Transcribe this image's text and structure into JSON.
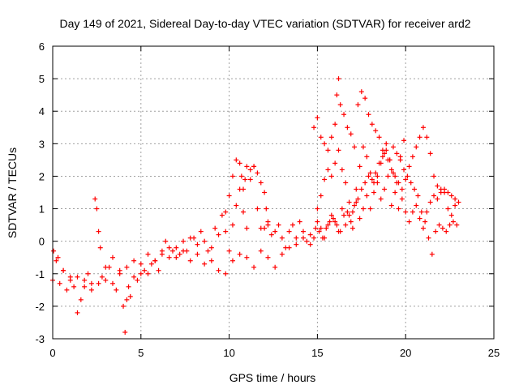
{
  "chart_data": {
    "type": "scatter",
    "title": "Day 149 of 2021, Sidereal Day-to-day VTEC variation (SDTVAR) for receiver ard2",
    "xlabel": "GPS time / hours",
    "ylabel": "SDTVAR / TECUs",
    "xlim": [
      0,
      25
    ],
    "ylim": [
      -3,
      6
    ],
    "xticks": [
      "0",
      "5",
      "10",
      "15",
      "20",
      "25"
    ],
    "yticks": [
      "-3",
      "-2",
      "-1",
      "0",
      "1",
      "2",
      "3",
      "4",
      "5",
      "6"
    ],
    "grid": true,
    "marker": "+",
    "color": "#ff0000",
    "series": [
      {
        "name": "ard2",
        "x": [
          0.0,
          0.2,
          0.4,
          0.6,
          0.8,
          1.0,
          1.2,
          1.4,
          1.6,
          1.8,
          2.0,
          2.2,
          2.4,
          2.5,
          2.6,
          2.7,
          2.8,
          3.0,
          3.2,
          3.4,
          3.6,
          3.8,
          4.0,
          4.1,
          4.2,
          4.3,
          4.4,
          4.6,
          4.8,
          5.0,
          5.2,
          5.4,
          5.6,
          5.8,
          6.0,
          6.2,
          6.4,
          6.6,
          6.8,
          7.0,
          7.2,
          7.4,
          7.6,
          7.8,
          8.0,
          8.2,
          8.4,
          8.6,
          8.8,
          9.0,
          9.2,
          9.4,
          9.6,
          9.8,
          10.0,
          10.2,
          10.4,
          10.6,
          10.8,
          11.0,
          11.2,
          11.4,
          11.6,
          11.8,
          12.0,
          12.2,
          12.4,
          12.6,
          12.8,
          13.0,
          13.2,
          13.4,
          13.6,
          13.8,
          14.0,
          14.2,
          14.4,
          14.6,
          14.8,
          15.0,
          15.2,
          15.4,
          15.6,
          15.8,
          16.0,
          16.2,
          16.4,
          16.6,
          16.8,
          17.0,
          17.2,
          17.4,
          17.6,
          17.8,
          18.0,
          18.2,
          18.4,
          18.6,
          18.8,
          19.0,
          19.2,
          19.4,
          19.6,
          19.8,
          20.0,
          20.2,
          20.4,
          20.6,
          20.8,
          21.0,
          21.2,
          21.4,
          21.6,
          21.8,
          22.0,
          22.2,
          22.4,
          22.6,
          22.8,
          23.0,
          0.05,
          0.3,
          0.6,
          1.0,
          1.4,
          1.8,
          2.2,
          2.6,
          3.0,
          3.4,
          3.8,
          4.2,
          4.6,
          5.0,
          5.4,
          5.8,
          6.2,
          6.6,
          7.0,
          7.4,
          7.8,
          8.2,
          8.6,
          9.0,
          9.4,
          9.8,
          10.2,
          10.6,
          11.0,
          11.4,
          11.8,
          12.2,
          12.6,
          13.0,
          13.4,
          13.8,
          14.2,
          14.6,
          14.9,
          15.1,
          15.3,
          15.5,
          15.7,
          15.9,
          16.1,
          16.3,
          16.5,
          16.7,
          16.9,
          17.1,
          17.3,
          17.5,
          17.7,
          17.9,
          18.1,
          18.3,
          18.5,
          18.7,
          18.9,
          19.1,
          19.3,
          19.5,
          19.7,
          19.9,
          20.1,
          20.3,
          20.5,
          20.7,
          20.9,
          21.1,
          21.3,
          21.5,
          21.7,
          21.9,
          22.1,
          22.3,
          22.5,
          22.7,
          22.9,
          9.8,
          10.0,
          10.2,
          10.4,
          10.6,
          10.7,
          10.8,
          10.9,
          11.0,
          11.2,
          11.4,
          11.6,
          11.8,
          12.0,
          12.1,
          12.2,
          14.8,
          15.0,
          15.2,
          15.4,
          15.6,
          15.8,
          16.0,
          16.1,
          16.2,
          16.3,
          16.5,
          16.7,
          16.9,
          17.1,
          17.3,
          17.5,
          17.7,
          17.9,
          18.1,
          18.3,
          18.5,
          18.7,
          18.9,
          19.1,
          19.3,
          19.5,
          19.7,
          19.9,
          15.0,
          15.2,
          15.4,
          15.6,
          15.8,
          16.0,
          16.2,
          16.4,
          16.6,
          16.8,
          17.0,
          17.2,
          17.4,
          17.6,
          17.8,
          18.0,
          18.2,
          18.4,
          18.6,
          18.8,
          19.0,
          19.2,
          19.4,
          19.6,
          19.8,
          20.0,
          20.2,
          20.4,
          20.6,
          20.8,
          21.0,
          21.2,
          21.4,
          21.6,
          21.8,
          22.0,
          22.2,
          22.4,
          22.6,
          22.8
        ],
        "y": [
          -1.2,
          -0.6,
          -1.3,
          -0.9,
          -1.5,
          -1.1,
          -1.4,
          -2.2,
          -1.8,
          -1.2,
          -1.0,
          -1.3,
          1.3,
          1.0,
          0.3,
          -0.2,
          -1.1,
          -1.2,
          -0.8,
          -1.3,
          -1.5,
          -1.0,
          -2.0,
          -2.8,
          -1.8,
          -1.4,
          -1.7,
          -1.1,
          -1.2,
          -1.0,
          -0.9,
          -1.0,
          -0.7,
          -0.6,
          -0.9,
          -0.4,
          0.0,
          -0.5,
          -0.3,
          -0.2,
          -0.4,
          0.0,
          -0.3,
          -0.6,
          0.1,
          -0.1,
          0.3,
          0.0,
          -0.3,
          -0.2,
          0.4,
          0.2,
          0.8,
          0.3,
          -0.3,
          0.5,
          1.1,
          1.6,
          0.9,
          0.4,
          1.9,
          2.3,
          1.0,
          0.4,
          0.4,
          0.6,
          0.2,
          0.3,
          0.5,
          0.1,
          -0.2,
          0.3,
          0.5,
          0.1,
          0.6,
          0.3,
          0.0,
          -0.1,
          0.1,
          0.6,
          0.4,
          0.1,
          0.5,
          0.8,
          0.6,
          0.3,
          1.0,
          0.5,
          0.8,
          0.4,
          1.2,
          0.7,
          1.0,
          1.4,
          1.0,
          1.5,
          1.8,
          1.3,
          1.6,
          2.0,
          1.1,
          1.5,
          1.0,
          1.3,
          0.9,
          0.6,
          0.9,
          1.1,
          0.7,
          0.4,
          0.9,
          1.2,
          1.4,
          1.3,
          1.6,
          1.5,
          1.0,
          0.8,
          1.1,
          1.2,
          -0.3,
          -0.5,
          -0.9,
          -1.2,
          -1.1,
          -1.4,
          -1.5,
          -1.3,
          -0.8,
          -0.5,
          -0.9,
          -0.8,
          -0.6,
          -0.7,
          -0.4,
          -0.6,
          -0.3,
          -0.2,
          -0.5,
          -0.3,
          0.1,
          -0.4,
          -0.7,
          -0.6,
          -0.9,
          -1.0,
          -0.6,
          -0.4,
          -0.5,
          -0.8,
          -0.3,
          -0.5,
          -0.8,
          -0.4,
          -0.2,
          -0.1,
          0.1,
          0.2,
          0.4,
          0.3,
          0.1,
          0.4,
          0.6,
          0.7,
          0.5,
          0.3,
          0.8,
          0.9,
          0.6,
          1.1,
          1.3,
          1.6,
          1.8,
          2.0,
          1.9,
          2.1,
          2.4,
          2.6,
          2.8,
          2.5,
          2.9,
          2.7,
          2.5,
          2.2,
          2.0,
          1.8,
          1.6,
          1.4,
          0.9,
          0.6,
          0.1,
          -0.4,
          0.3,
          0.5,
          0.4,
          0.3,
          0.5,
          0.6,
          0.5,
          0.9,
          1.4,
          2.0,
          2.5,
          2.4,
          2.0,
          1.6,
          1.9,
          2.3,
          2.2,
          2.3,
          2.1,
          1.8,
          1.5,
          1.0,
          0.5,
          3.5,
          3.8,
          3.2,
          3.0,
          2.8,
          3.2,
          3.6,
          4.5,
          5.0,
          4.2,
          3.9,
          3.5,
          3.3,
          2.9,
          4.2,
          4.6,
          4.4,
          3.9,
          3.6,
          3.4,
          3.2,
          2.8,
          3.0,
          2.5,
          2.1,
          1.8,
          2.6,
          3.1,
          1.0,
          1.4,
          1.9,
          2.2,
          2.0,
          2.4,
          2.8,
          2.2,
          1.8,
          1.2,
          0.9,
          1.6,
          2.3,
          2.9,
          2.6,
          2.1,
          1.8,
          2.0,
          2.4,
          2.7,
          2.5,
          2.2,
          2.0,
          1.8,
          1.6,
          1.9,
          2.3,
          2.6,
          2.9,
          3.2,
          3.5,
          3.2,
          2.7,
          2.0,
          1.7,
          1.5,
          1.6,
          1.5,
          1.4,
          1.3
        ]
      }
    ]
  }
}
